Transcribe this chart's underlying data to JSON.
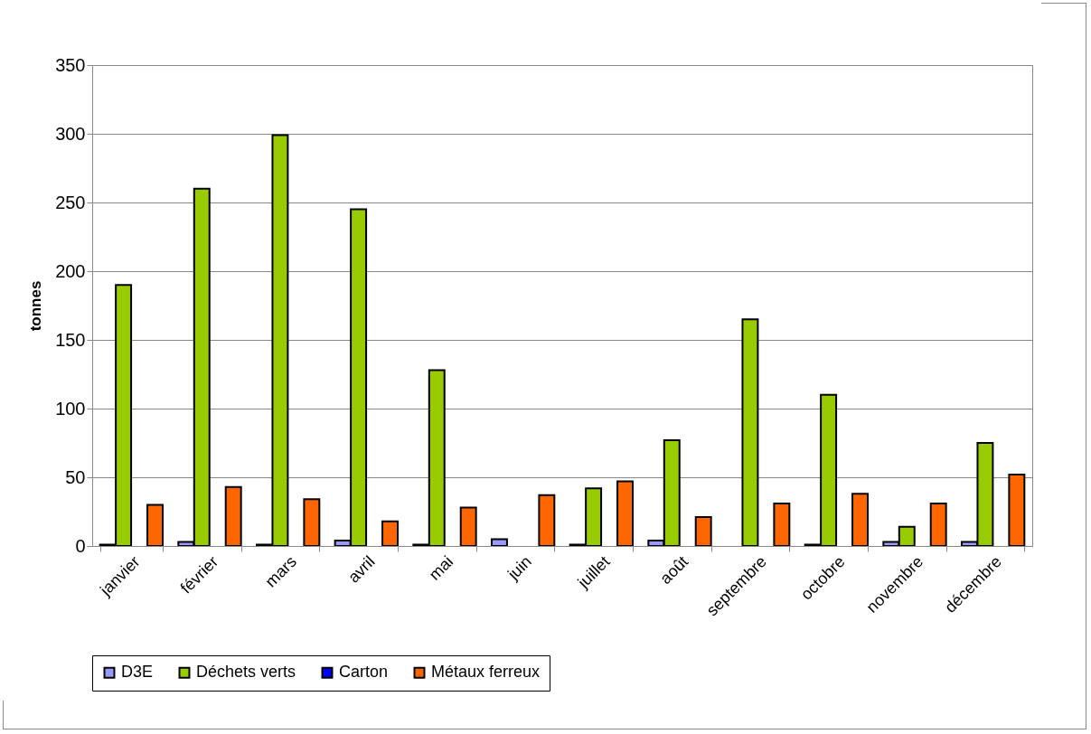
{
  "chart_data": {
    "type": "bar",
    "ylabel": "tonnes",
    "categories": [
      "janvier",
      "février",
      "mars",
      "avril",
      "mai",
      "juin",
      "juillet",
      "août",
      "septembre",
      "octobre",
      "novembre",
      "décembre"
    ],
    "series": [
      {
        "name": "D3E",
        "color": "#9999ff",
        "values": [
          1,
          3,
          1,
          4,
          1,
          5,
          1,
          4,
          null,
          1,
          3,
          3
        ]
      },
      {
        "name": "Déchets verts",
        "color": "#99cc00",
        "values": [
          190,
          260,
          299,
          245,
          128,
          null,
          42,
          77,
          165,
          110,
          14,
          75
        ]
      },
      {
        "name": "Carton",
        "color": "#0000ff",
        "values": [
          null,
          null,
          null,
          null,
          null,
          null,
          null,
          null,
          null,
          null,
          null,
          null
        ]
      },
      {
        "name": "Métaux ferreux",
        "color": "#ff6600",
        "values": [
          30,
          43,
          34,
          18,
          28,
          37,
          47,
          21,
          31,
          38,
          31,
          52
        ]
      }
    ],
    "ylim": [
      0,
      350
    ],
    "yticks": [
      0,
      50,
      100,
      150,
      200,
      250,
      300,
      350
    ],
    "grid": "y",
    "legend": "bottom"
  }
}
